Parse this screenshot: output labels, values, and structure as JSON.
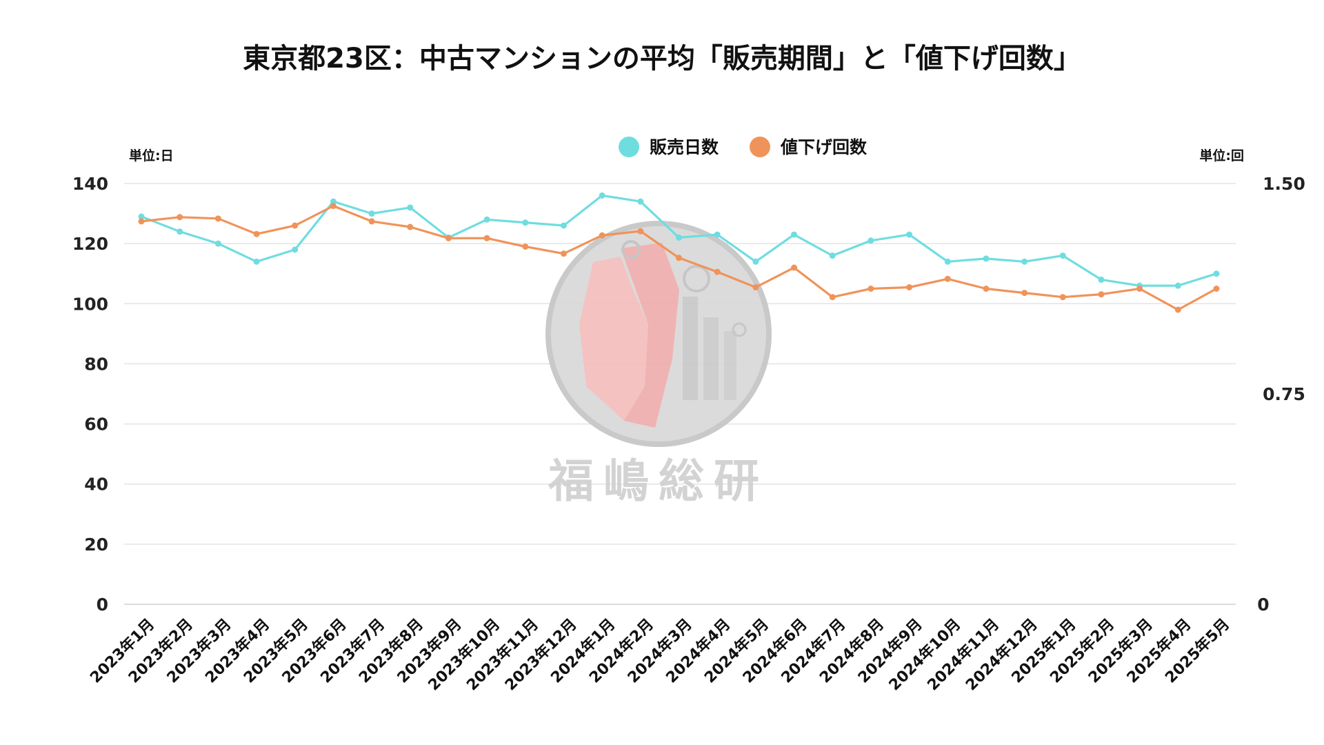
{
  "chart_data": {
    "type": "line",
    "title": "東京都23区：中古マンションの平均「販売期間」と「値下げ回数」",
    "left_unit_label": "単位:日",
    "right_unit_label": "単位:回",
    "categories": [
      "2023年1月",
      "2023年2月",
      "2023年3月",
      "2023年4月",
      "2023年5月",
      "2023年6月",
      "2023年7月",
      "2023年8月",
      "2023年9月",
      "2023年10月",
      "2023年11月",
      "2023年12月",
      "2024年1月",
      "2024年2月",
      "2024年3月",
      "2024年4月",
      "2024年5月",
      "2024年6月",
      "2024年7月",
      "2024年8月",
      "2024年9月",
      "2024年10月",
      "2024年11月",
      "2024年12月",
      "2025年1月",
      "2025年2月",
      "2025年3月",
      "2025年4月",
      "2025年5月"
    ],
    "y_left": {
      "min": 0,
      "max": 140,
      "ticks": [
        "0",
        "20",
        "40",
        "60",
        "80",
        "100",
        "120",
        "140"
      ]
    },
    "y_right": {
      "min": 0,
      "max": 1.5,
      "ticks": [
        "0",
        "0.75",
        "1.50"
      ]
    },
    "grid": true,
    "legend_position": "top-center",
    "series": [
      {
        "name": "販売日数",
        "axis": "left",
        "color": "#6fdde0",
        "values": [
          129,
          124,
          120,
          114,
          118,
          134,
          130,
          132,
          122,
          128,
          127,
          126,
          136,
          134,
          122,
          123,
          114,
          123,
          116,
          121,
          123,
          114,
          115,
          114,
          116,
          108,
          106,
          106,
          110
        ]
      },
      {
        "name": "値下げ回数",
        "axis": "right",
        "color": "#f0935a",
        "values": [
          1.365,
          1.38,
          1.375,
          1.32,
          1.35,
          1.42,
          1.365,
          1.345,
          1.305,
          1.305,
          1.275,
          1.25,
          1.315,
          1.33,
          1.235,
          1.185,
          1.13,
          1.2,
          1.095,
          1.125,
          1.13,
          1.16,
          1.125,
          1.11,
          1.095,
          1.105,
          1.125,
          1.05,
          1.125
        ]
      }
    ]
  },
  "watermark": {
    "text": "福嶋総研"
  }
}
